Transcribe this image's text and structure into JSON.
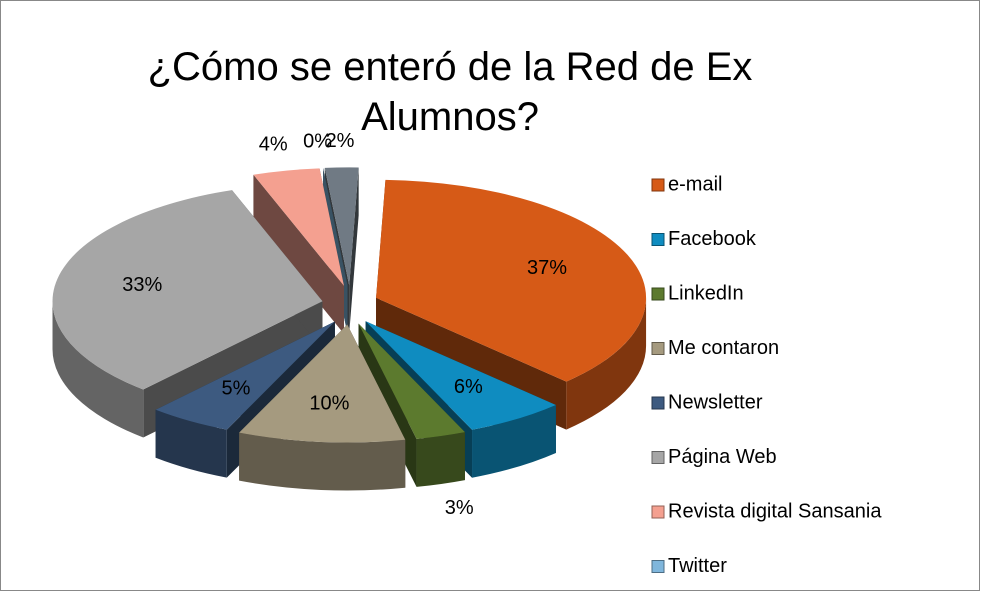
{
  "chart_data": {
    "type": "pie",
    "title": "¿Cómo se enteró de la Red de Ex Alumnos?",
    "categories": [
      "e-mail",
      "Facebook",
      "LinkedIn",
      "Me contaron",
      "Newsletter",
      "Página Web",
      "Revista digital Sansania",
      "Twitter",
      null
    ],
    "values": [
      37,
      6,
      3,
      10,
      5,
      33,
      4,
      0,
      2
    ],
    "value_labels": [
      "37%",
      "6%",
      "3%",
      "10%",
      "5%",
      "33%",
      "4%",
      "0%",
      "2%"
    ],
    "colors": [
      "#d65a17",
      "#0f8cc0",
      "#5c7a2e",
      "#a59a7f",
      "#3d5a80",
      "#a6a6a6",
      "#f4a090",
      "#7fb6dc",
      "#707a84"
    ],
    "legend": "right"
  }
}
